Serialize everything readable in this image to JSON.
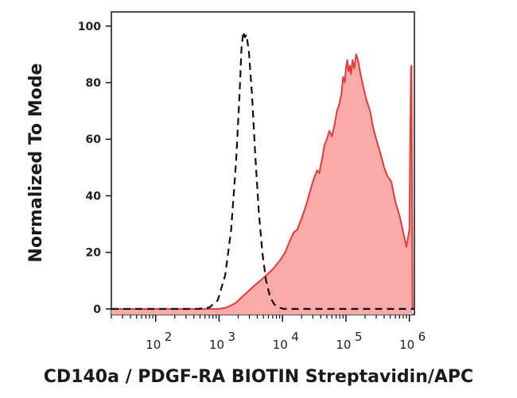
{
  "chart_data": {
    "type": "area",
    "title": "",
    "xlabel": "CD140a / PDGF-RA BIOTIN Streptavidin/APC",
    "ylabel": "Normalized To Mode",
    "x_scale": "log",
    "xlim": [
      20,
      1200000
    ],
    "ylim": [
      -2,
      105
    ],
    "y_ticks": [
      0,
      20,
      40,
      60,
      80,
      100
    ],
    "x_ticks": [
      {
        "value": 100,
        "base": "10",
        "exp": "2"
      },
      {
        "value": 1000,
        "base": "10",
        "exp": "3"
      },
      {
        "value": 10000,
        "base": "10",
        "exp": "4"
      },
      {
        "value": 100000,
        "base": "10",
        "exp": "5"
      },
      {
        "value": 1000000,
        "base": "10",
        "exp": "6"
      }
    ],
    "grid": false,
    "series": [
      {
        "style": "dashed",
        "color": "#111111",
        "fill": "none",
        "x": [
          20,
          450,
          700,
          950,
          1250,
          1550,
          1850,
          2100,
          2250,
          2400,
          2550,
          2700,
          2950,
          3300,
          3700,
          4200,
          4800,
          5500,
          6400,
          7500,
          8800,
          10500,
          13000,
          20000,
          1200000
        ],
        "y": [
          0,
          0,
          0.5,
          3,
          12,
          28,
          52,
          76,
          92,
          98,
          96,
          97,
          91,
          76,
          55,
          35,
          20,
          10,
          4,
          1.5,
          0.5,
          0,
          0,
          0,
          0
        ]
      },
      {
        "style": "solid",
        "color": "#e03c3c",
        "fill": "#fbaaaa",
        "x": [
          20,
          1000,
          1300,
          1800,
          2500,
          3500,
          5000,
          7000,
          9000,
          11000,
          13000,
          15000,
          17000,
          20000,
          23000,
          26000,
          30000,
          35000,
          38000,
          42000,
          46000,
          50000,
          55000,
          60000,
          66000,
          72000,
          78000,
          85000,
          90000,
          96000,
          100000,
          105000,
          110000,
          115000,
          120000,
          127000,
          135000,
          145000,
          155000,
          170000,
          190000,
          210000,
          240000,
          270000,
          300000,
          350000,
          400000,
          450000,
          520000,
          600000,
          700000,
          800000,
          900000,
          1000000,
          1030000,
          1060000,
          1080000,
          1100000,
          1120000
        ],
        "y": [
          0,
          0,
          0.5,
          2,
          5,
          8,
          11,
          14,
          17,
          20,
          24,
          27,
          28,
          32,
          36,
          40,
          45,
          49,
          48,
          53,
          58,
          60,
          63,
          61,
          65,
          70,
          72,
          76,
          82,
          80,
          85,
          88,
          84,
          86,
          83,
          88,
          85,
          90,
          88,
          83,
          78,
          74,
          70,
          64,
          60,
          55,
          50,
          47,
          45,
          38,
          33,
          27,
          22,
          28,
          58,
          85,
          86,
          40,
          0
        ]
      }
    ]
  }
}
